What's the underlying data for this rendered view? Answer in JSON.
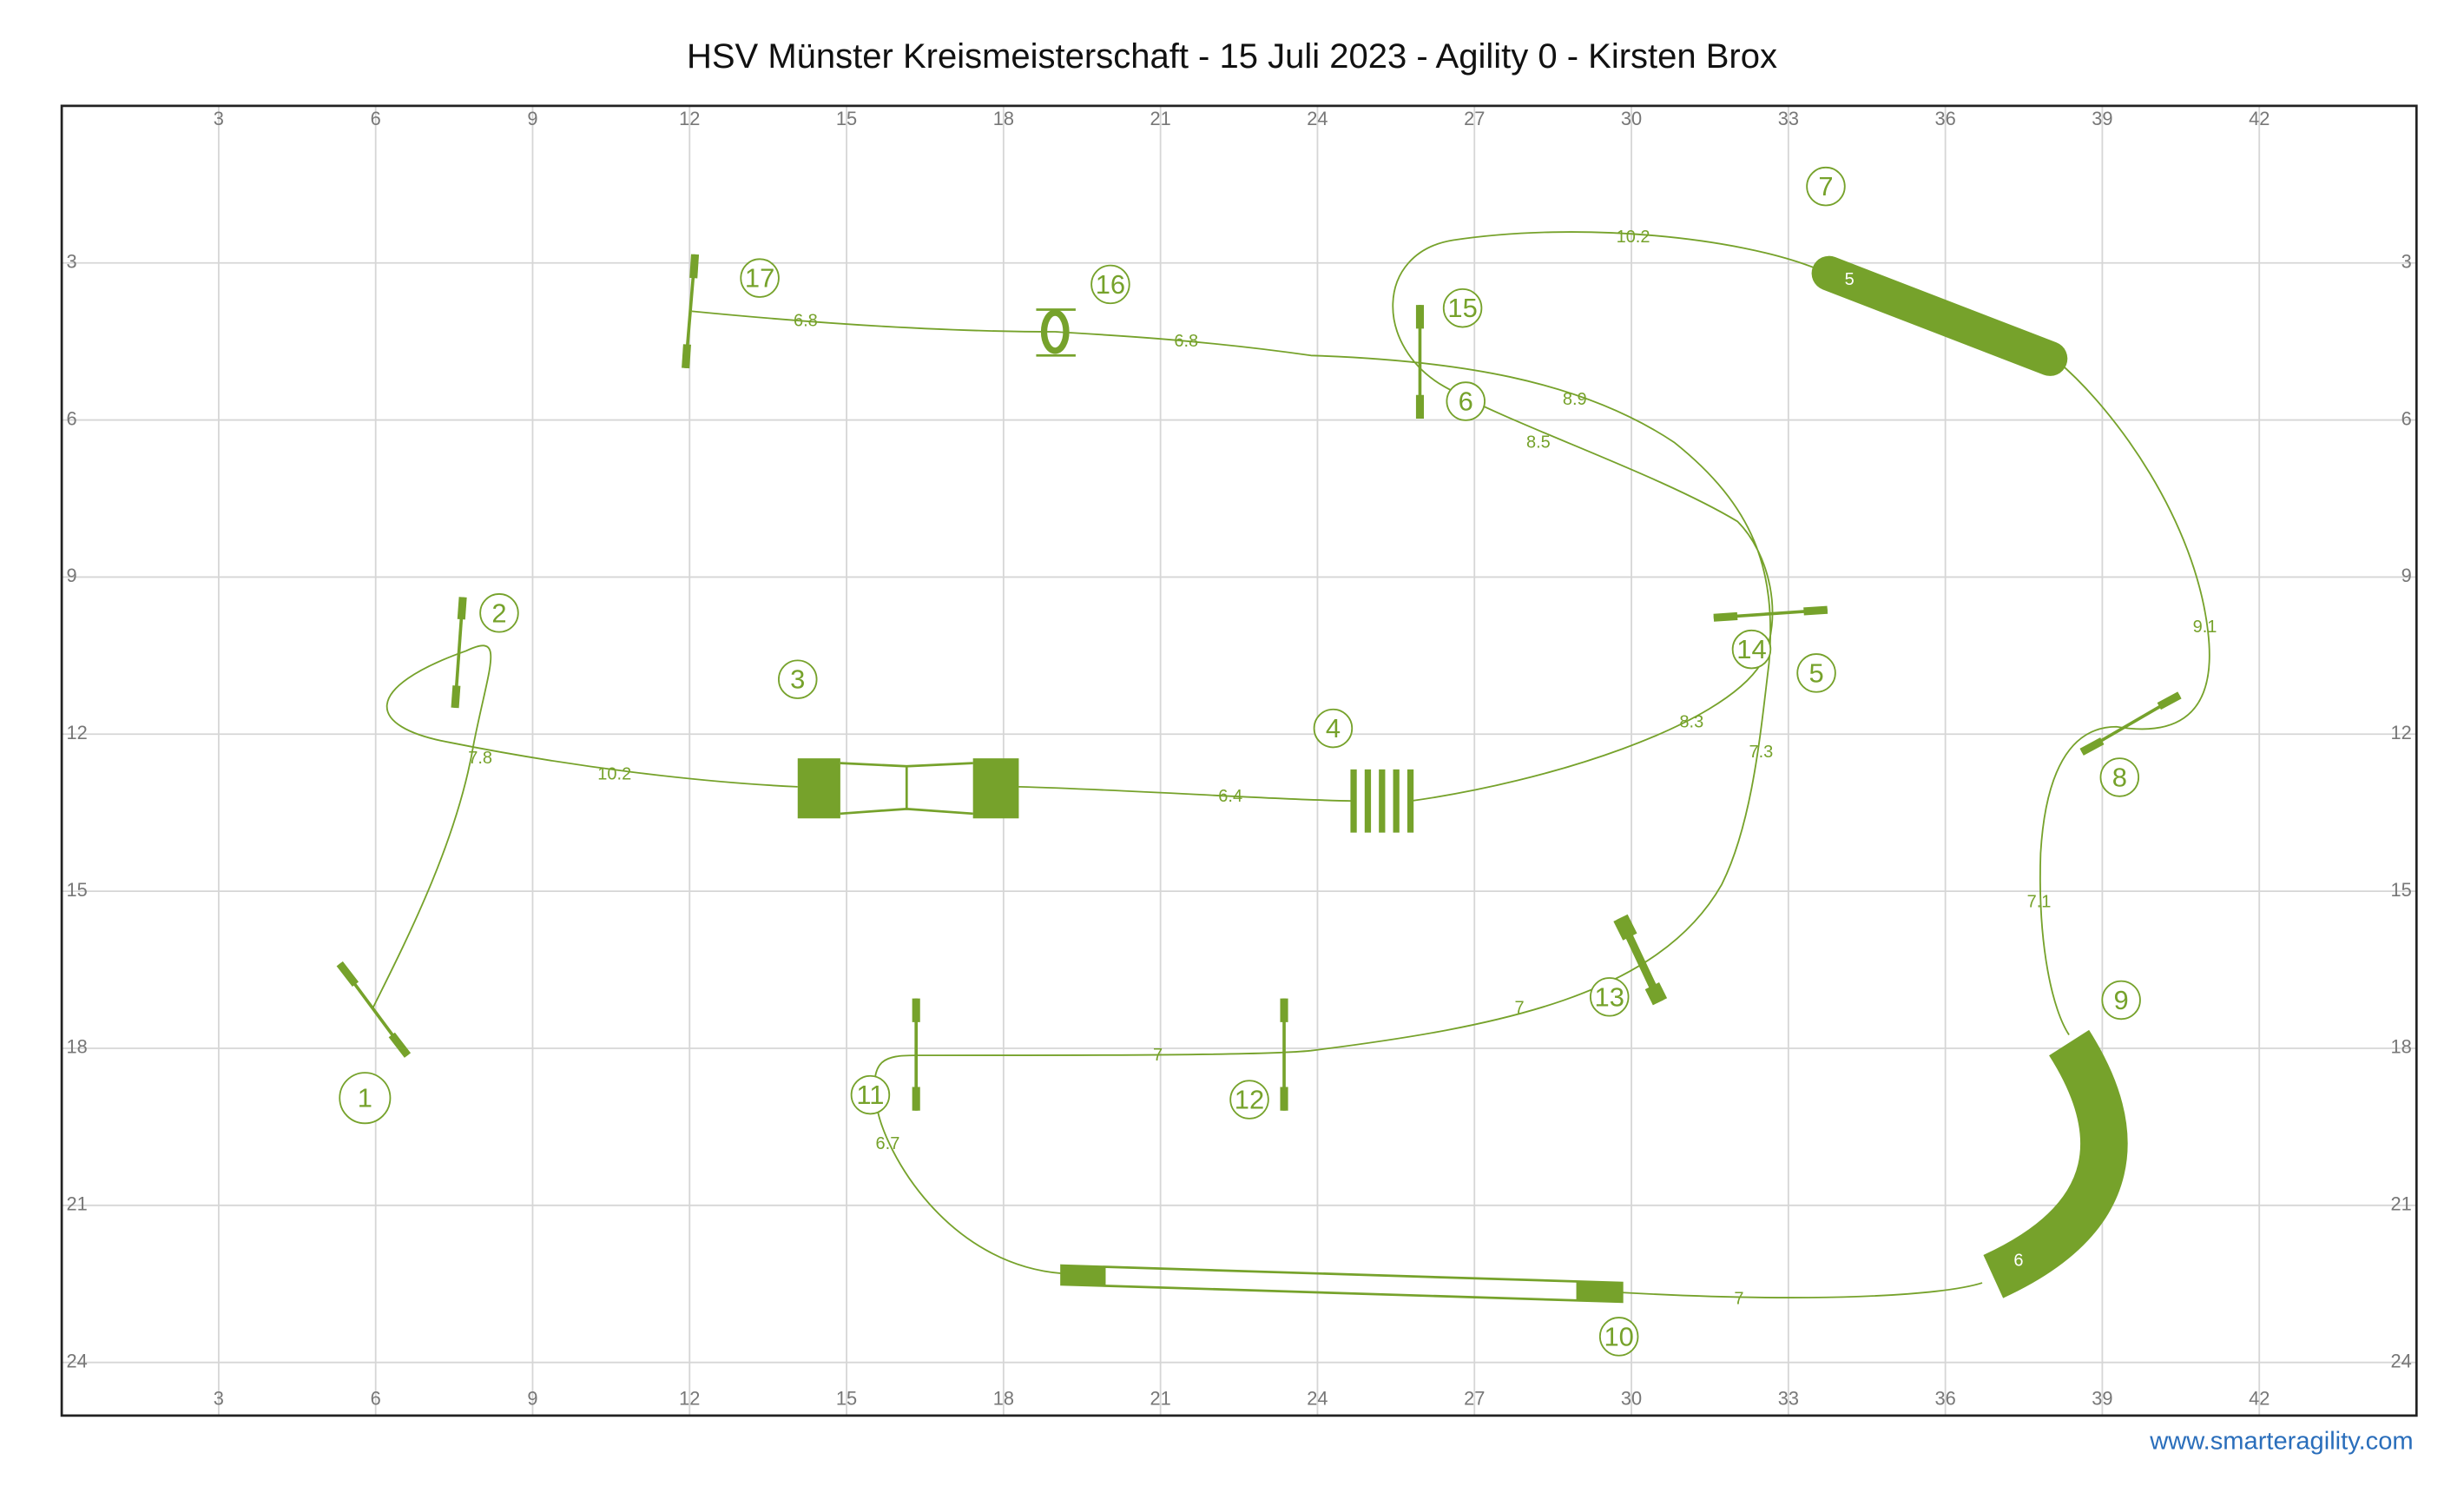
{
  "header": {
    "title": "HSV Münster Kreismeisterschaft - 15 Juli 2023 - Agility 0 - Kirsten Brox"
  },
  "grid": {
    "xticks": [
      3,
      6,
      9,
      12,
      15,
      18,
      21,
      24,
      27,
      30,
      33,
      36,
      39,
      42
    ],
    "yticks": [
      3,
      6,
      9,
      12,
      15,
      18,
      21,
      24
    ]
  },
  "obstacles": [
    "1",
    "2",
    "3",
    "4",
    "5",
    "6",
    "7",
    "8",
    "9",
    "10",
    "11",
    "12",
    "13",
    "14",
    "15",
    "16",
    "17"
  ],
  "distances": [
    "7.8",
    "10.2",
    "6.4",
    "8.3",
    "8.5",
    "10.2",
    "9.1",
    "7.1",
    "7",
    "6.7",
    "7",
    "7",
    "7.3",
    "8.9",
    "6.8",
    "6.8"
  ],
  "tunnel_labels": [
    "5",
    "6"
  ],
  "footer": {
    "link": "www.smarteragility.com"
  }
}
